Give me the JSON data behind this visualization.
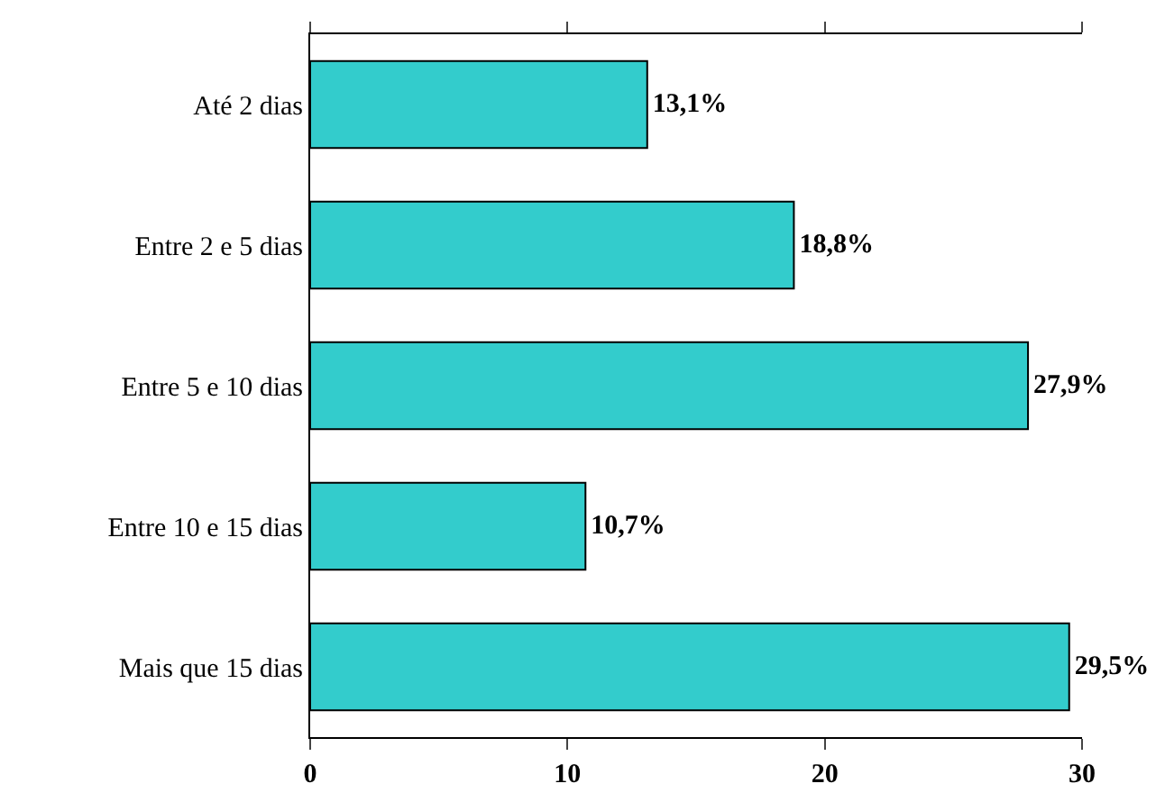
{
  "chart_data": {
    "type": "bar",
    "orientation": "horizontal",
    "categories": [
      "Até 2 dias",
      "Entre 2 e 5 dias",
      "Entre 5 e 10 dias",
      "Entre 10 e 15 dias",
      "Mais que 15 dias"
    ],
    "values": [
      13.1,
      18.8,
      27.9,
      10.7,
      29.5
    ],
    "value_labels": [
      "13,1%",
      "18,8%",
      "27,9%",
      "10,7%",
      "29,5%"
    ],
    "color": "#33cccc",
    "xlim": [
      0,
      30
    ],
    "xticks": [
      0,
      10,
      20,
      30
    ]
  }
}
